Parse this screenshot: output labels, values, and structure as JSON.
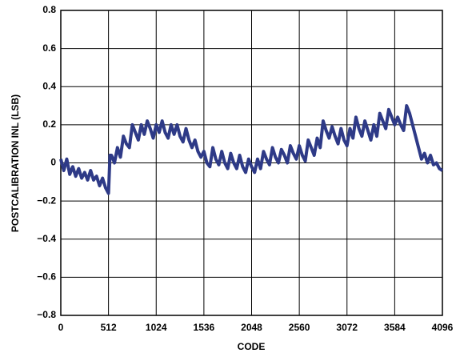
{
  "chart_data": {
    "type": "line",
    "x_label": "CODE",
    "y_label": "POSTCALIBRATION INL (LSB)",
    "x": [
      0,
      32,
      64,
      96,
      128,
      160,
      192,
      224,
      256,
      288,
      320,
      352,
      384,
      416,
      448,
      480,
      512,
      528,
      544,
      576,
      608,
      640,
      672,
      704,
      736,
      768,
      800,
      832,
      864,
      896,
      928,
      960,
      992,
      1024,
      1056,
      1088,
      1120,
      1152,
      1184,
      1216,
      1248,
      1280,
      1312,
      1344,
      1376,
      1408,
      1440,
      1472,
      1504,
      1536,
      1568,
      1600,
      1632,
      1664,
      1696,
      1728,
      1760,
      1792,
      1824,
      1856,
      1888,
      1920,
      1952,
      1984,
      2016,
      2048,
      2080,
      2112,
      2144,
      2176,
      2208,
      2240,
      2272,
      2304,
      2336,
      2368,
      2400,
      2432,
      2464,
      2496,
      2528,
      2560,
      2592,
      2624,
      2656,
      2688,
      2720,
      2752,
      2784,
      2816,
      2848,
      2880,
      2912,
      2944,
      2976,
      3008,
      3040,
      3072,
      3104,
      3136,
      3168,
      3200,
      3232,
      3264,
      3296,
      3328,
      3360,
      3392,
      3424,
      3456,
      3488,
      3520,
      3552,
      3584,
      3616,
      3648,
      3680,
      3712,
      3744,
      3776,
      3808,
      3840,
      3872,
      3904,
      3936,
      3968,
      4000,
      4032,
      4064,
      4096
    ],
    "series": [
      {
        "color": "#2e3a87",
        "values": [
          0.02,
          -0.04,
          0.02,
          -0.06,
          -0.02,
          -0.07,
          -0.03,
          -0.08,
          -0.05,
          -0.09,
          -0.04,
          -0.09,
          -0.07,
          -0.12,
          -0.08,
          -0.13,
          -0.16,
          0.04,
          0.04,
          0.0,
          0.08,
          0.03,
          0.14,
          0.1,
          0.08,
          0.2,
          0.16,
          0.12,
          0.2,
          0.15,
          0.22,
          0.18,
          0.13,
          0.2,
          0.16,
          0.22,
          0.16,
          0.13,
          0.2,
          0.15,
          0.2,
          0.14,
          0.11,
          0.18,
          0.12,
          0.08,
          0.12,
          0.06,
          0.03,
          0.06,
          0.0,
          -0.02,
          0.08,
          0.02,
          -0.01,
          0.06,
          0.0,
          -0.03,
          0.05,
          0.0,
          -0.03,
          0.04,
          -0.02,
          -0.05,
          0.02,
          -0.02,
          -0.05,
          0.02,
          -0.03,
          0.06,
          0.02,
          -0.01,
          0.08,
          0.03,
          0.0,
          0.07,
          0.04,
          0.0,
          0.09,
          0.05,
          0.02,
          0.09,
          0.04,
          0.01,
          0.12,
          0.08,
          0.04,
          0.13,
          0.08,
          0.22,
          0.17,
          0.13,
          0.19,
          0.14,
          0.1,
          0.18,
          0.12,
          0.09,
          0.18,
          0.13,
          0.24,
          0.18,
          0.14,
          0.22,
          0.17,
          0.12,
          0.2,
          0.14,
          0.26,
          0.22,
          0.18,
          0.28,
          0.24,
          0.2,
          0.24,
          0.2,
          0.17,
          0.3,
          0.26,
          0.2,
          0.14,
          0.08,
          0.02,
          0.05,
          0.0,
          0.04,
          -0.01,
          0.0,
          -0.03,
          -0.04
        ]
      }
    ],
    "xlim": [
      0,
      4096
    ],
    "xticks": [
      0,
      512,
      1024,
      1536,
      2048,
      2560,
      3072,
      3584,
      4096
    ],
    "ylim": [
      -0.8,
      0.8
    ],
    "yticks": [
      {
        "value": -0.8,
        "label": "−0.8"
      },
      {
        "value": -0.6,
        "label": "−0.6"
      },
      {
        "value": -0.4,
        "label": "−0.4"
      },
      {
        "value": -0.2,
        "label": "−0.2"
      },
      0,
      0.2,
      0.4,
      0.6,
      0.8
    ],
    "grid": true
  }
}
